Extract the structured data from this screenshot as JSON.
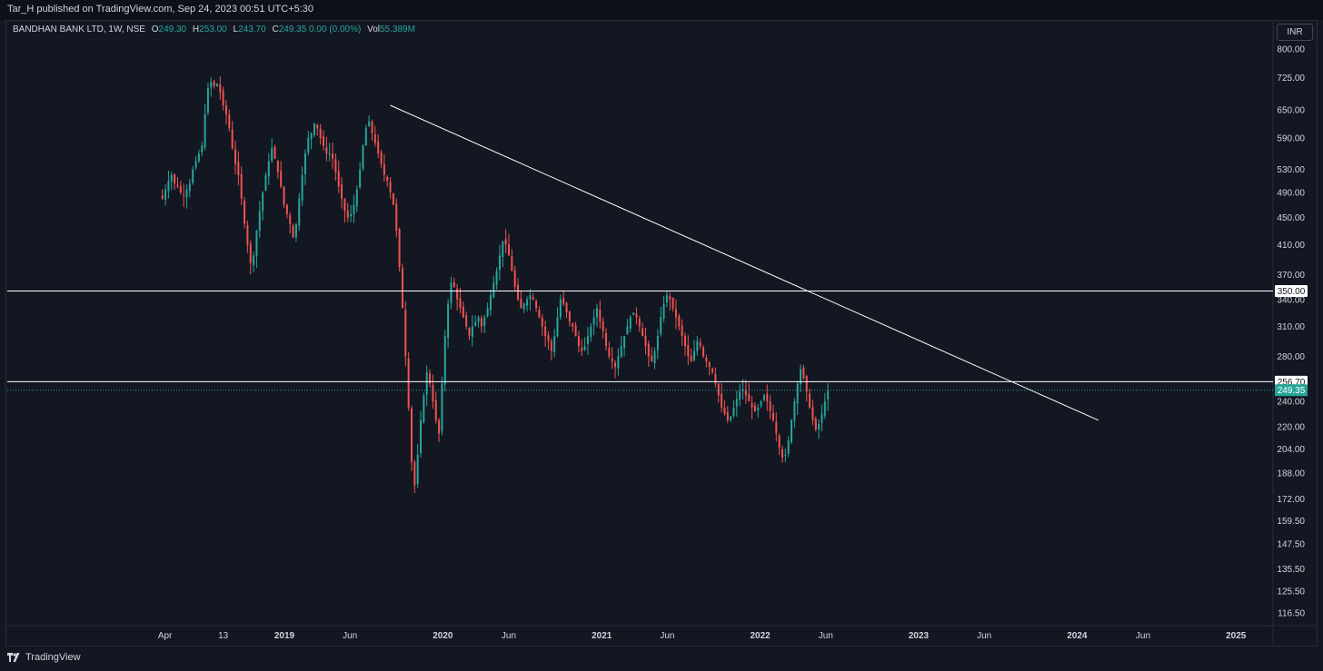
{
  "header": {
    "publish_text": "Tar_H published on TradingView.com, Sep 24, 2023 00:51 UTC+5:30"
  },
  "legend": {
    "symbol": "BANDHAN BANK LTD, 1W, NSE",
    "o_label": "O",
    "o_value": "249.30",
    "h_label": "H",
    "h_value": "253.00",
    "l_label": "L",
    "l_value": "243.70",
    "c_label": "C",
    "c_value": "249.35 0.00 (0.00%)",
    "vol_label": "Vol",
    "vol_value": "55.389M"
  },
  "currency": "INR",
  "footer": {
    "logo_text": "TradingView"
  },
  "colors": {
    "up": "#26a69a",
    "down": "#ef5350",
    "background": "#131722",
    "line": "#ffffff",
    "current_price_tag": "#26a69a"
  },
  "chart_data": {
    "type": "candlestick",
    "scale": "log",
    "ylim": [
      110,
      810
    ],
    "y_ticks": [
      "800.00",
      "725.00",
      "650.00",
      "590.00",
      "530.00",
      "490.00",
      "450.00",
      "410.00",
      "370.00",
      "340.00",
      "310.00",
      "280.00",
      "240.00",
      "220.00",
      "204.00",
      "188.00",
      "172.00",
      "159.50",
      "147.50",
      "135.50",
      "125.50",
      "116.50"
    ],
    "x_ticks": [
      "Apr",
      "13",
      "2019",
      "Jun",
      "2020",
      "Jun",
      "2021",
      "Jun",
      "2022",
      "Jun",
      "2023",
      "Jun",
      "2024",
      "Jun",
      "2025"
    ],
    "date_range": [
      "2018-03-26",
      "2025-04-07"
    ],
    "horizontal_levels": [
      {
        "price": 350.0,
        "label": "350.00"
      },
      {
        "price": 256.7,
        "label": "256.70"
      }
    ],
    "current_price": {
      "price": 249.35,
      "label": "249.35"
    },
    "trendline": {
      "start": {
        "date": "2019-09-02",
        "price": 660
      },
      "end": {
        "date": "2024-02-19",
        "price": 225
      }
    },
    "weekly_closes": {
      "start_date": "2018-03-26",
      "interval": "1W",
      "values": [
        480,
        495,
        510,
        520,
        505,
        500,
        490,
        485,
        495,
        505,
        530,
        545,
        560,
        575,
        640,
        700,
        715,
        705,
        710,
        690,
        660,
        640,
        610,
        570,
        540,
        520,
        480,
        440,
        410,
        385,
        395,
        430,
        460,
        490,
        520,
        545,
        570,
        550,
        525,
        500,
        470,
        455,
        440,
        420,
        440,
        480,
        520,
        560,
        590,
        600,
        620,
        610,
        590,
        575,
        560,
        560,
        550,
        525,
        500,
        480,
        460,
        450,
        455,
        470,
        495,
        530,
        575,
        610,
        625,
        600,
        580,
        560,
        540,
        520,
        510,
        490,
        470,
        430,
        380,
        330,
        280,
        235,
        195,
        180,
        200,
        225,
        245,
        265,
        255,
        240,
        225,
        215,
        255,
        300,
        335,
        360,
        355,
        340,
        330,
        320,
        310,
        300,
        310,
        315,
        320,
        310,
        320,
        330,
        345,
        360,
        375,
        395,
        415,
        410,
        395,
        375,
        355,
        340,
        330,
        335,
        340,
        345,
        340,
        330,
        320,
        310,
        300,
        295,
        285,
        300,
        320,
        340,
        335,
        325,
        315,
        310,
        300,
        290,
        285,
        290,
        300,
        310,
        320,
        330,
        315,
        305,
        290,
        280,
        275,
        270,
        280,
        290,
        300,
        310,
        320,
        325,
        320,
        310,
        300,
        290,
        280,
        275,
        285,
        300,
        320,
        335,
        345,
        340,
        330,
        320,
        310,
        300,
        290,
        280,
        275,
        285,
        295,
        290,
        280,
        275,
        270,
        265,
        255,
        245,
        235,
        230,
        225,
        228,
        235,
        242,
        248,
        250,
        245,
        240,
        235,
        232,
        235,
        240,
        245,
        240,
        232,
        225,
        215,
        205,
        198,
        200,
        210,
        225,
        240,
        255,
        268,
        260,
        248,
        235,
        225,
        218,
        222,
        230,
        240,
        249
      ]
    }
  }
}
